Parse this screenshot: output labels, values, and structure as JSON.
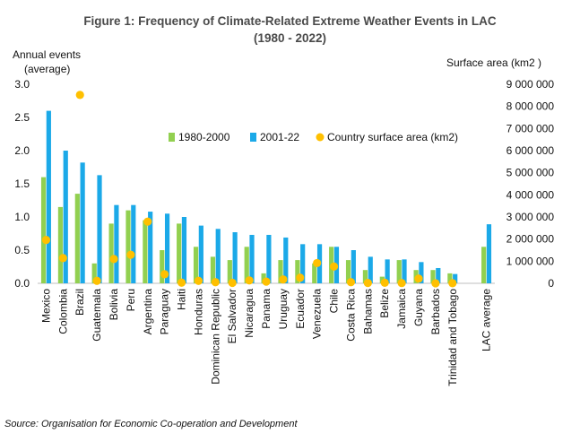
{
  "title_line1": "Figure 1:  Frequency of Climate-Related Extreme Weather Events in LAC",
  "title_line2": "(1980 - 2022)",
  "ylabel_left_line1": "Annual events",
  "ylabel_left_line2": "(average)",
  "ylabel_right": "Surface area (km2 )",
  "source": "Source: Organisation for Economic Co-operation and Development",
  "colors": {
    "s1": "#92d050",
    "s2": "#1ba9e8",
    "dot": "#ffc000"
  },
  "chart_data": {
    "type": "bar",
    "categories": [
      "Mexico",
      "Colombia",
      "Brazil",
      "Guatemala",
      "Bolivia",
      "Peru",
      "Argentina",
      "Paraguay",
      "Haiti",
      "Honduras",
      "Dominican Republic",
      "El Salvador",
      "Nicaragua",
      "Panama",
      "Uruguay",
      "Ecuador",
      "Venezuela",
      "Chile",
      "Costa Rica",
      "Bahamas",
      "Belize",
      "Jamaica",
      "Guyana",
      "Barbados",
      "Trinidad and Tobago",
      "",
      "LAC average"
    ],
    "series": [
      {
        "name": "1980-2000",
        "axis": "left",
        "values": [
          1.6,
          1.15,
          1.35,
          0.3,
          0.9,
          1.1,
          0.95,
          0.5,
          0.9,
          0.55,
          0.4,
          0.35,
          0.55,
          0.15,
          0.35,
          0.35,
          0.3,
          0.55,
          0.35,
          0.2,
          0.1,
          0.35,
          0.2,
          0.2,
          0.15,
          null,
          0.55
        ]
      },
      {
        "name": "2001-22",
        "axis": "left",
        "values": [
          2.6,
          2.0,
          1.82,
          1.63,
          1.18,
          1.18,
          1.08,
          1.05,
          1.0,
          0.87,
          0.82,
          0.77,
          0.73,
          0.73,
          0.69,
          0.59,
          0.59,
          0.55,
          0.5,
          0.4,
          0.36,
          0.36,
          0.32,
          0.23,
          0.14,
          null,
          0.89
        ]
      },
      {
        "name": "Country surface area (km2)",
        "axis": "right",
        "type": "scatter",
        "values": [
          1960000,
          1140000,
          8520000,
          110000,
          1100000,
          1290000,
          2790000,
          410000,
          30000,
          110000,
          50000,
          20000,
          130000,
          75000,
          175000,
          255000,
          915000,
          760000,
          50000,
          15000,
          25000,
          12000,
          215000,
          500,
          5000,
          null,
          null
        ]
      }
    ],
    "ylim": [
      0,
      3.0
    ],
    "yticks": [
      "0.0",
      "0.5",
      "1.0",
      "1.5",
      "2.0",
      "2.5",
      "3.0"
    ],
    "y2lim": [
      0,
      9000000
    ],
    "y2ticks": [
      "0",
      "1 000 000",
      "2 000 000",
      "3 000 000",
      "4 000 000",
      "5 000 000",
      "6 000 000",
      "7 000 000",
      "8 000 000",
      "9 000 000"
    ],
    "legend": "inside-top-center",
    "grid": false
  }
}
